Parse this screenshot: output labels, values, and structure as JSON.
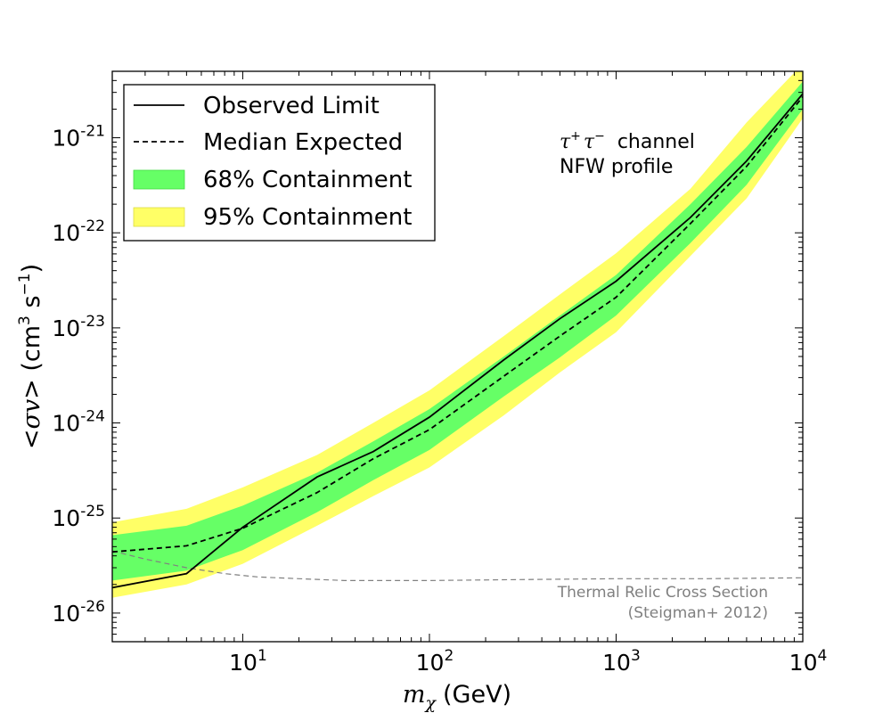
{
  "chart_data": {
    "type": "line",
    "x_scale": "log",
    "y_scale": "log",
    "xlim": [
      2,
      10000
    ],
    "ylim": [
      5e-27,
      5e-21
    ],
    "xlabel_sym": "m",
    "xlabel_sub": "χ",
    "xlabel_unit": "(GeV)",
    "ylabel_pre": "<",
    "ylabel_sym": "σv",
    "ylabel_post": "> (cm",
    "ylabel_exp1": "3",
    "ylabel_mid": " s",
    "ylabel_exp2": "−1",
    "ylabel_close": ")",
    "x_ticks": [
      {
        "value": 10,
        "base": "10",
        "exp": "1"
      },
      {
        "value": 100,
        "base": "10",
        "exp": "2"
      },
      {
        "value": 1000,
        "base": "10",
        "exp": "3"
      },
      {
        "value": 10000,
        "base": "10",
        "exp": "4"
      }
    ],
    "y_ticks": [
      {
        "value": 1e-26,
        "base": "10",
        "exp": "-26"
      },
      {
        "value": 1e-25,
        "base": "10",
        "exp": "-25"
      },
      {
        "value": 1e-24,
        "base": "10",
        "exp": "-24"
      },
      {
        "value": 1e-23,
        "base": "10",
        "exp": "-23"
      },
      {
        "value": 1e-22,
        "base": "10",
        "exp": "-22"
      },
      {
        "value": 1e-21,
        "base": "10",
        "exp": "-21"
      }
    ],
    "mass": [
      2,
      5,
      10,
      25,
      50,
      100,
      250,
      500,
      1000,
      2500,
      5000,
      10000
    ],
    "series": [
      {
        "name": "Observed Limit",
        "style": "solid",
        "color": "#000000",
        "values": [
          1.85e-26,
          2.6e-26,
          8e-26,
          2.7e-25,
          5e-25,
          1.15e-24,
          4.6e-24,
          1.25e-23,
          3.1e-23,
          1.45e-22,
          5.7e-22,
          2.9e-21
        ]
      },
      {
        "name": "Median Expected",
        "style": "dashed",
        "color": "#000000",
        "values": [
          4.4e-26,
          5.1e-26,
          7.8e-26,
          1.85e-25,
          4.2e-25,
          8.5e-25,
          3.1e-24,
          8.2e-24,
          2.1e-23,
          1.25e-22,
          5e-22,
          2.7e-21
        ]
      }
    ],
    "bands": [
      {
        "name": "95% Containment",
        "color": "#ffff66",
        "lower": [
          1.45e-26,
          2e-26,
          3.3e-26,
          8.3e-26,
          1.7e-25,
          3.4e-25,
          1.2e-24,
          3.4e-24,
          9e-24,
          5.7e-23,
          2.3e-22,
          1.6e-21
        ],
        "upper": [
          9e-26,
          1.25e-25,
          2.1e-25,
          4.6e-25,
          1e-24,
          2.2e-24,
          8.2e-24,
          2.25e-23,
          6.1e-23,
          2.9e-22,
          1.45e-21,
          6e-21
        ]
      },
      {
        "name": "68% Containment",
        "color": "#66ff66",
        "lower": [
          2.2e-26,
          2.8e-26,
          4.6e-26,
          1.15e-25,
          2.5e-25,
          5.2e-25,
          1.9e-24,
          4.9e-24,
          1.35e-23,
          7.8e-23,
          3.2e-22,
          2e-21
        ],
        "upper": [
          6.6e-26,
          8.3e-26,
          1.35e-25,
          3e-25,
          6.4e-25,
          1.4e-24,
          5e-24,
          1.35e-23,
          3.6e-23,
          2e-22,
          8e-22,
          3.9e-21
        ]
      }
    ],
    "relic": {
      "name": "Thermal Relic Cross Section",
      "color": "#808080",
      "mass": [
        2,
        3,
        5,
        8,
        12,
        20,
        35,
        60,
        100,
        300,
        1000,
        3000,
        10000
      ],
      "values": [
        4.5e-26,
        3.7e-26,
        3e-26,
        2.6e-26,
        2.4e-26,
        2.3e-26,
        2.2e-26,
        2.2e-26,
        2.2e-26,
        2.25e-26,
        2.3e-26,
        2.3e-26,
        2.35e-26
      ]
    },
    "legend": {
      "position": "top-left",
      "entries": [
        "Observed Limit",
        "Median Expected",
        "68% Containment",
        "95% Containment"
      ]
    },
    "annotation": {
      "channel_tau1": "τ",
      "channel_sup1": "+",
      "channel_tau2": "τ",
      "channel_sup2": "−",
      "channel_word": "channel",
      "profile": "NFW profile",
      "relic_line1": "Thermal Relic Cross Section",
      "relic_line2": "(Steigman+ 2012)"
    }
  }
}
